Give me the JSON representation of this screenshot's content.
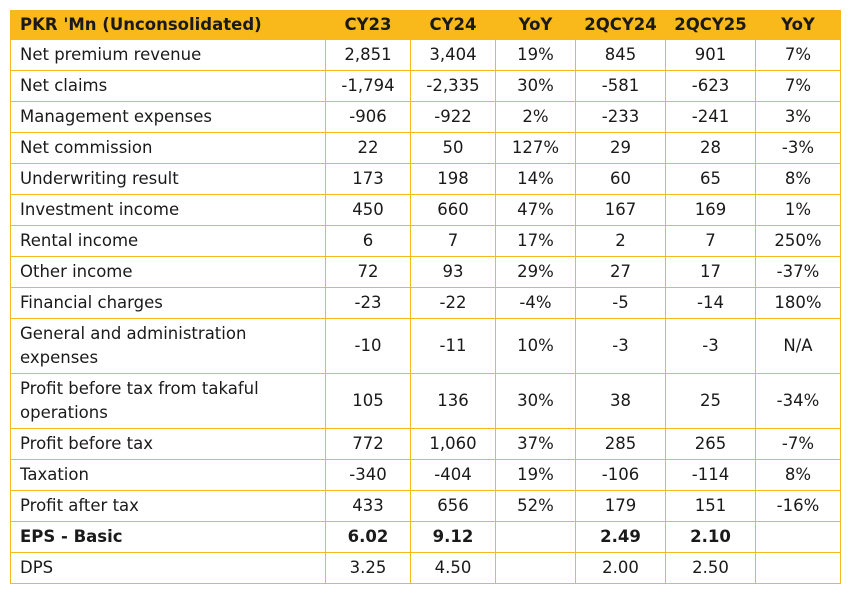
{
  "table": {
    "header": [
      "PKR 'Mn (Unconsolidated)",
      "CY23",
      "CY24",
      "YoY",
      "2QCY24",
      "2QCY25",
      "YoY"
    ],
    "rows": [
      [
        "Net premium revenue",
        "2,851",
        "3,404",
        "19%",
        "845",
        "901",
        "7%"
      ],
      [
        "Net claims",
        "-1,794",
        "-2,335",
        "30%",
        "-581",
        "-623",
        "7%"
      ],
      [
        "Management expenses",
        "-906",
        "-922",
        "2%",
        "-233",
        "-241",
        "3%"
      ],
      [
        "Net commission",
        "22",
        "50",
        "127%",
        "29",
        "28",
        "-3%"
      ],
      [
        "Underwriting result",
        "173",
        "198",
        "14%",
        "60",
        "65",
        "8%"
      ],
      [
        "Investment income",
        "450",
        "660",
        "47%",
        "167",
        "169",
        "1%"
      ],
      [
        "Rental income",
        "6",
        "7",
        "17%",
        "2",
        "7",
        "250%"
      ],
      [
        "Other income",
        "72",
        "93",
        "29%",
        "27",
        "17",
        "-37%"
      ],
      [
        "Financial charges",
        "-23",
        "-22",
        "-4%",
        "-5",
        "-14",
        "180%"
      ],
      [
        "General and administration expenses",
        "-10",
        "-11",
        "10%",
        "-3",
        "-3",
        "N/A"
      ],
      [
        "Profit before tax from takaful operations",
        "105",
        "136",
        "30%",
        "38",
        "25",
        "-34%"
      ],
      [
        "Profit before tax",
        "772",
        "1,060",
        "37%",
        "285",
        "265",
        "-7%"
      ],
      [
        "Taxation",
        "-340",
        "-404",
        "19%",
        "-106",
        "-114",
        "8%"
      ],
      [
        "Profit after tax",
        "433",
        "656",
        "52%",
        "179",
        "151",
        "-16%"
      ],
      [
        "EPS - Basic",
        "6.02",
        "9.12",
        null,
        "2.49",
        "2.10",
        null
      ],
      [
        "DPS",
        "3.25",
        "4.50",
        null,
        "2.00",
        "2.50",
        null
      ]
    ]
  }
}
